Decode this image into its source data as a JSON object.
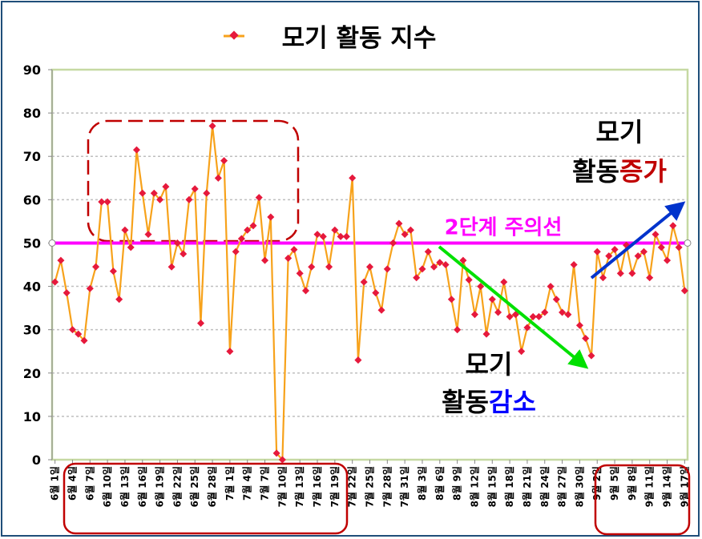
{
  "chart_data": {
    "type": "line",
    "title": "모기 활동 지수",
    "series_name": "모기 활동 지수",
    "ylim": [
      0,
      90
    ],
    "y_ticks": [
      0,
      10,
      20,
      30,
      40,
      50,
      60,
      70,
      80,
      90
    ],
    "grid": "horizontal-dotted",
    "legend": "title",
    "x_tick_labels": [
      "6월 1일",
      "6월 4일",
      "6월 7일",
      "6월 10일",
      "6월 13일",
      "6월 16일",
      "6월 19일",
      "6월 22일",
      "6월 25일",
      "6월 28일",
      "7월 1일",
      "7월 4일",
      "7월 7일",
      "7월 10일",
      "7월 13일",
      "7월 16일",
      "7월 19일",
      "7월 22일",
      "7월 25일",
      "7월 28일",
      "7월 31일",
      "8월 3일",
      "8월 6일",
      "8월 9일",
      "8월 12일",
      "8월 15일",
      "8월 18일",
      "8월 21일",
      "8월 24일",
      "8월 27일",
      "8월 30일",
      "9월 2일",
      "9월 5일",
      "9월 8일",
      "9월 11일",
      "9월 14일",
      "9월 17일"
    ],
    "values": [
      41,
      46,
      38.5,
      30,
      29,
      27.5,
      39.5,
      44.5,
      59.5,
      59.5,
      43.5,
      37,
      53,
      49,
      71.5,
      61.5,
      52,
      61.5,
      60,
      63,
      44.5,
      50,
      47.5,
      60,
      62.5,
      31.5,
      61.5,
      77,
      65,
      69,
      25,
      48,
      51,
      53,
      54,
      60.5,
      46,
      56,
      1.5,
      0,
      46.5,
      48.5,
      43,
      39,
      44.5,
      52,
      51.5,
      44.5,
      53,
      51.5,
      51.5,
      65,
      23,
      41,
      44.5,
      38.5,
      34.5,
      44,
      50,
      54.5,
      52,
      53,
      42,
      44,
      48,
      44.5,
      45.5,
      45,
      37,
      30,
      46,
      41.5,
      33.5,
      40,
      29,
      37,
      34,
      41,
      33,
      33.5,
      25,
      30.5,
      33,
      33,
      34,
      40,
      37,
      34,
      33.5,
      45,
      31,
      28,
      24,
      48,
      42,
      47,
      48.5,
      43,
      49.5,
      43,
      47,
      48,
      42,
      52,
      49,
      46,
      54,
      49,
      39
    ],
    "threshold": {
      "value": 50,
      "label": "2단계 주의선",
      "color": "#ff00ff"
    },
    "annotations": {
      "decrease": {
        "line1": "모기",
        "line2_prefix": "활동",
        "line2_colored": "감소",
        "accent": "#0000ff"
      },
      "increase": {
        "line1": "모기",
        "line2_prefix": "활동",
        "line2_colored": "증가",
        "accent": "#c00000"
      }
    },
    "colors": {
      "line": "#f7a21b",
      "marker": "#e6193c",
      "grid": "#bfbfbf",
      "plot_border": "#c6d9a3",
      "down_arrow": "#00e000",
      "up_arrow": "#0033cc",
      "highlight_box": "#c00000"
    }
  }
}
